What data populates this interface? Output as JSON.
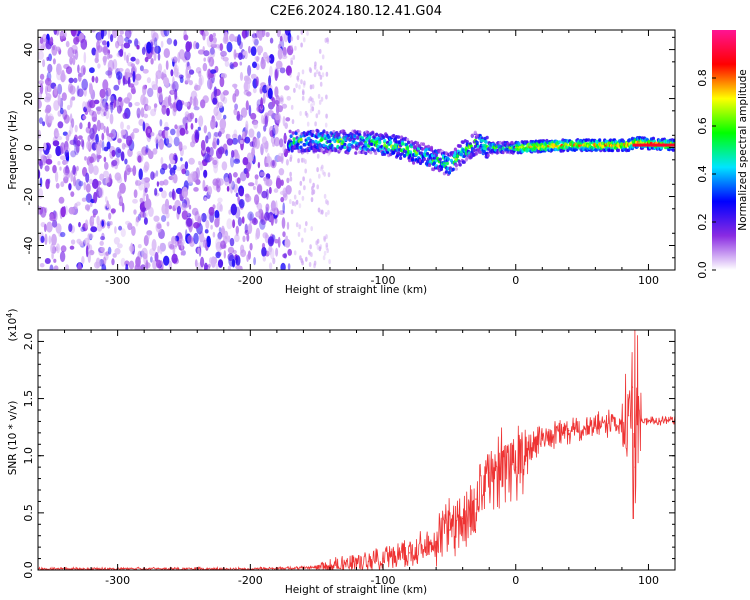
{
  "figure": {
    "title": "C2E6.2024.180.12.41.G04"
  },
  "chart_data": [
    {
      "type": "heatmap",
      "xlabel": "Height of straight line (km)",
      "ylabel": "Frequency (Hz)",
      "xlim": [
        -360,
        120
      ],
      "ylim": [
        -50,
        48
      ],
      "x_ticks": [
        -300,
        -200,
        -100,
        0,
        100
      ],
      "x_tick_labels": [
        "-300",
        "-200",
        "-100",
        "0",
        "100"
      ],
      "y_ticks": [
        -40,
        -20,
        0,
        20,
        40
      ],
      "y_tick_labels": [
        "-40",
        "-20",
        "0",
        "20",
        "40"
      ],
      "colorbar": {
        "label": "Normalized spectral amplitude",
        "range": [
          0,
          1
        ],
        "ticks": [
          0,
          0.2,
          0.4,
          0.6,
          0.8
        ],
        "tick_labels": [
          "0.0",
          "0.2",
          "0.4",
          "0.6",
          "0.8"
        ],
        "colormap": [
          "#ffffff",
          "#8a2be2",
          "#0000ff",
          "#00e5ff",
          "#00ff00",
          "#ffff00",
          "#ff0000",
          "#ff1493"
        ]
      },
      "features": {
        "noise_region_x": [
          -360,
          -170
        ],
        "sparse_region_x": [
          -170,
          -140
        ],
        "signal_ridge": [
          {
            "x": -170,
            "y": 2.5
          },
          {
            "x": -140,
            "y": 2.5
          },
          {
            "x": -110,
            "y": 2
          },
          {
            "x": -90,
            "y": 0.5
          },
          {
            "x": -70,
            "y": -3
          },
          {
            "x": -50,
            "y": -7
          },
          {
            "x": -40,
            "y": -2
          },
          {
            "x": -30,
            "y": 2
          },
          {
            "x": -20,
            "y": 0
          },
          {
            "x": 0,
            "y": 0
          },
          {
            "x": 40,
            "y": 1
          },
          {
            "x": 85,
            "y": 1
          },
          {
            "x": 90,
            "y": 2
          },
          {
            "x": 120,
            "y": 1
          }
        ]
      },
      "grid": false
    },
    {
      "type": "line",
      "xlabel": "Height of straight line (km)",
      "ylabel": "SNR (10 * v/v)",
      "y_multiplier_label": "(x10",
      "y_multiplier_exp": "4",
      "y_multiplier_close": ")",
      "xlim": [
        -360,
        120
      ],
      "ylim": [
        0,
        2.1
      ],
      "x_ticks": [
        -300,
        -200,
        -100,
        0,
        100
      ],
      "x_tick_labels": [
        "-300",
        "-200",
        "-100",
        "0",
        "100"
      ],
      "y_ticks": [
        0,
        0.5,
        1.0,
        1.5,
        2.0
      ],
      "y_tick_labels": [
        "0.0",
        "0.5",
        "1.0",
        "1.5",
        "2.0"
      ],
      "line_color": "#ee3333",
      "series": [
        {
          "x": [
            -360,
            -300,
            -250,
            -200,
            -160,
            -140,
            -120,
            -100,
            -80,
            -60,
            -50,
            -40,
            -30,
            -20,
            -10,
            0,
            10,
            20,
            40,
            60,
            80,
            85,
            88,
            90,
            92,
            100,
            120
          ],
          "y": [
            0.01,
            0.01,
            0.01,
            0.01,
            0.02,
            0.03,
            0.06,
            0.1,
            0.15,
            0.25,
            0.35,
            0.45,
            0.62,
            0.85,
            0.9,
            0.9,
            1.05,
            1.15,
            1.22,
            1.26,
            1.29,
            1.35,
            1.6,
            0.9,
            1.3,
            1.3,
            1.32
          ]
        }
      ],
      "grid": false
    }
  ]
}
